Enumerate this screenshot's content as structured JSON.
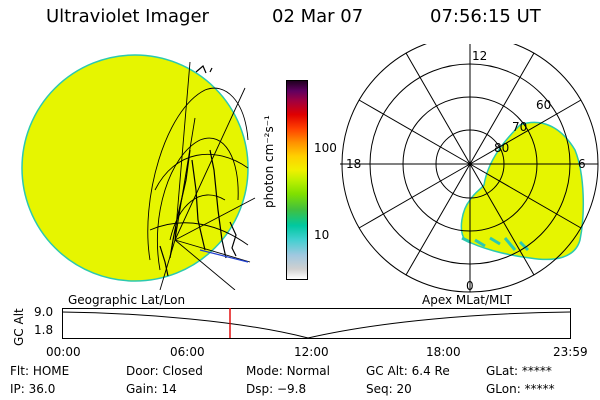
{
  "header": {
    "instrument": "Ultraviolet Imager",
    "date": "02 Mar 07",
    "time": "07:56:15 UT"
  },
  "colorbar": {
    "unit_label": "photon cm⁻²s⁻¹",
    "ticks": [
      "100",
      "10"
    ]
  },
  "polar_plot": {
    "hour_labels": [
      "12",
      "18",
      "6",
      "0"
    ],
    "lat_labels": [
      "60",
      "70",
      "80"
    ]
  },
  "panel_labels": {
    "left": "Geographic Lat/Lon",
    "right": "Apex MLat/MLT"
  },
  "altitude_axis": {
    "label": "GC Alt",
    "ticks": [
      "9.0",
      "1.8"
    ]
  },
  "time_axis": {
    "ticks": [
      "00:00",
      "06:00",
      "12:00",
      "18:00",
      "23:59"
    ],
    "current_marker": "07:56:15"
  },
  "status": {
    "row1": [
      {
        "label": "Flt:",
        "value": "HOME"
      },
      {
        "label": "Door:",
        "value": "Closed"
      },
      {
        "label": "Mode:",
        "value": "Normal"
      },
      {
        "label": "GC Alt:",
        "value": "6.4 Re"
      },
      {
        "label": "GLat:",
        "value": "*****"
      }
    ],
    "row2": [
      {
        "label": "IP:",
        "value": "36.0"
      },
      {
        "label": "Gain:",
        "value": "14"
      },
      {
        "label": "Dsp:",
        "value": "−9.8"
      },
      {
        "label": "Seq:",
        "value": "20"
      },
      {
        "label": "GLon:",
        "value": "*****"
      }
    ]
  },
  "colors": {
    "emission": "#e6f500",
    "edge": "#2bc9b0",
    "marker": "#e00000"
  }
}
